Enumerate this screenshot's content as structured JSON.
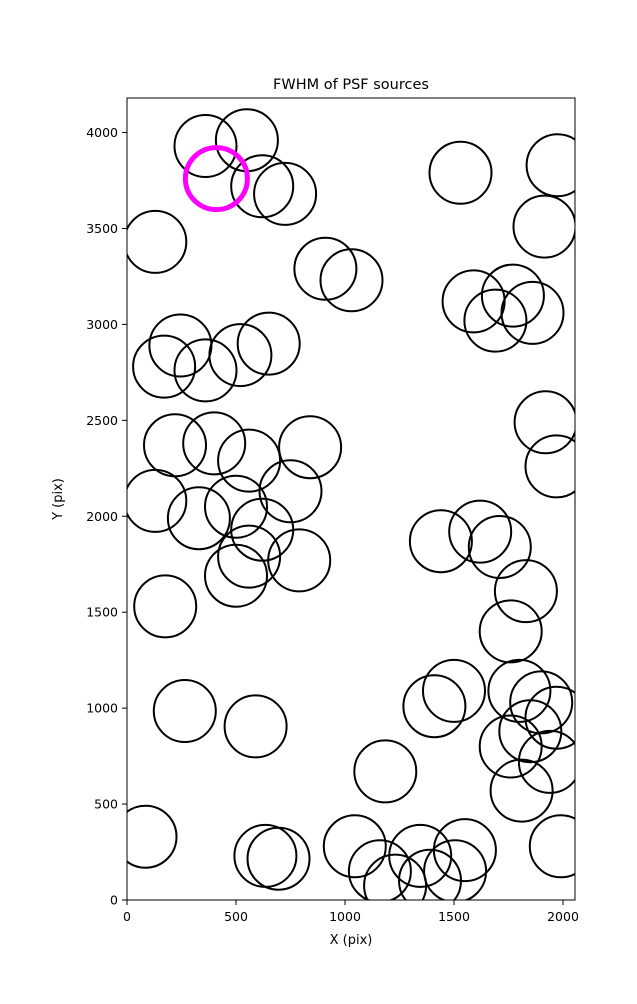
{
  "figure": {
    "background": "#ffffff"
  },
  "chart_data": {
    "type": "scatter",
    "title": "FWHM of PSF sources",
    "xlabel": "X (pix)",
    "ylabel": "Y (pix)",
    "xlim": [
      0,
      2055
    ],
    "ylim": [
      0,
      4180
    ],
    "xticks": [
      0,
      500,
      1000,
      1500,
      2000
    ],
    "yticks": [
      0,
      500,
      1000,
      1500,
      2000,
      2500,
      3000,
      3500,
      4000
    ],
    "grid": false,
    "legend": "none",
    "marker": {
      "shape": "open-circle",
      "radius_px": 31,
      "stroke": "#000000",
      "stroke_width": 2,
      "fill": "none"
    },
    "highlight_marker": {
      "shape": "open-circle",
      "x": 410,
      "y": 3760,
      "radius_px": 31,
      "stroke": "#ff00ff",
      "stroke_width": 5,
      "fill": "none"
    },
    "points": [
      [
        360,
        3930
      ],
      [
        550,
        3960
      ],
      [
        620,
        3720
      ],
      [
        725,
        3680
      ],
      [
        1530,
        3790
      ],
      [
        1975,
        3830
      ],
      [
        1915,
        3510
      ],
      [
        130,
        3430
      ],
      [
        910,
        3290
      ],
      [
        1030,
        3230
      ],
      [
        1590,
        3120
      ],
      [
        1770,
        3150
      ],
      [
        1860,
        3060
      ],
      [
        1690,
        3020
      ],
      [
        245,
        2890
      ],
      [
        170,
        2780
      ],
      [
        360,
        2760
      ],
      [
        520,
        2840
      ],
      [
        650,
        2900
      ],
      [
        1920,
        2490
      ],
      [
        1970,
        2260
      ],
      [
        220,
        2370
      ],
      [
        400,
        2380
      ],
      [
        840,
        2360
      ],
      [
        560,
        2290
      ],
      [
        130,
        2080
      ],
      [
        500,
        2050
      ],
      [
        750,
        2130
      ],
      [
        330,
        1990
      ],
      [
        620,
        1930
      ],
      [
        560,
        1790
      ],
      [
        790,
        1770
      ],
      [
        500,
        1690
      ],
      [
        1440,
        1870
      ],
      [
        1620,
        1920
      ],
      [
        1710,
        1840
      ],
      [
        1830,
        1610
      ],
      [
        175,
        1530
      ],
      [
        1760,
        1400
      ],
      [
        1500,
        1090
      ],
      [
        1410,
        1010
      ],
      [
        1800,
        1090
      ],
      [
        1900,
        1030
      ],
      [
        1970,
        950
      ],
      [
        1850,
        880
      ],
      [
        1760,
        800
      ],
      [
        265,
        985
      ],
      [
        590,
        905
      ],
      [
        1185,
        670
      ],
      [
        1940,
        720
      ],
      [
        1810,
        570
      ],
      [
        85,
        330
      ],
      [
        635,
        230
      ],
      [
        695,
        215
      ],
      [
        1045,
        280
      ],
      [
        1160,
        150
      ],
      [
        1345,
        230
      ],
      [
        1390,
        100
      ],
      [
        1505,
        150
      ],
      [
        1550,
        260
      ],
      [
        1230,
        75
      ],
      [
        1990,
        280
      ]
    ]
  },
  "layout_text": {
    "note": ""
  }
}
